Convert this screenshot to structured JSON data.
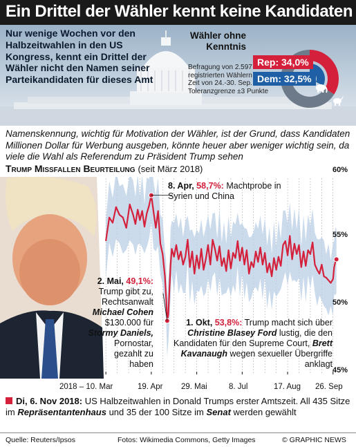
{
  "title": "Ein Drittel der Wähler kennt keine Kandidaten",
  "intro": "Nur wenige Wochen vor den Halbzeitwahlen in den US Kongress, kennt ein Drittel der Wähler nicht den Namen seiner Parteikandidaten für dieses Amt",
  "survey": {
    "title": "Wähler ohne Kenntnis",
    "rep_label": "Rep: 34,0%",
    "dem_label": "Dem: 32,5%",
    "rep_value": 34.0,
    "dem_value": 32.5,
    "note": "Befragung von 2.597 registrierten Wählern in der Zeit von 24.-30. Sep. Toleranzgrenze ±3 Punkte",
    "colors": {
      "rep": "#d4203a",
      "dem": "#1f5fa6",
      "rest": "#6c7a89"
    },
    "icons": [
      "elephant-icon",
      "donkey-icon"
    ]
  },
  "description": "Namenskennung, wichtig für Motivation der Wähler, ist der Grund, dass Kandidaten Millionen Dollar für Werbung ausgeben, könnte heuer aber weniger wichtig sein, da viele die Wahl als Referendum zu Präsident Trump sehen",
  "chart_head": {
    "title": "Trump Missfallen Beurteilung",
    "period": "(seit März 2018)"
  },
  "annotations": {
    "apr8": {
      "date": "8. Apr,",
      "value": "58,7%:",
      "text": "Machtprobe in Syrien und China"
    },
    "mai2": {
      "date": "2. Mai,",
      "value": "49,1%:",
      "t1": "Trump gibt zu,",
      "t2": "Rechtsanwalt",
      "n1": "Michael Cohen",
      "t3": "$130.000 für",
      "n2": "Stormy Daniels,",
      "t4": "Pornostar,",
      "t5": "gezahlt zu",
      "t6": "haben"
    },
    "okt1": {
      "date": "1. Okt,",
      "value": "53,8%:",
      "t1": "Trump macht sich über",
      "n1": "Christine Blasey Ford",
      "t2": "lustig,",
      "t3": "die den Kandidaten für den Supreme Court,",
      "n2": "Brett Kavanaugh",
      "t4": "wegen sexueller Übergriffe anklagt"
    }
  },
  "chart_data": {
    "type": "line",
    "title": "Trump Missfallen Beurteilung",
    "subtitle": "(seit März 2018)",
    "xlabel": "",
    "ylabel": "",
    "x_tick_labels": [
      "2018 – 10. Mar",
      "19. Apr",
      "29. Mai",
      "8. Jul",
      "17. Aug",
      "26. Sep"
    ],
    "x_tick_days": [
      0,
      40,
      80,
      120,
      160,
      200
    ],
    "y_tick_labels": [
      "60%",
      "55%",
      "50%",
      "45%"
    ],
    "y_tick_values": [
      60,
      55,
      50,
      45
    ],
    "ylim": [
      45,
      60
    ],
    "xlim": [
      -8,
      205
    ],
    "grid": "vertical",
    "colors": {
      "line": "#d4203a",
      "band": "#b9cfe6"
    },
    "x_days": [
      0,
      3,
      6,
      9,
      12,
      15,
      18,
      21,
      24,
      26,
      28,
      30,
      32,
      34,
      36,
      38,
      40,
      42,
      44,
      46,
      48,
      50,
      52,
      53,
      54,
      55,
      56,
      57,
      58,
      60,
      62,
      64,
      66,
      68,
      70,
      72,
      74,
      76,
      78,
      80,
      82,
      84,
      86,
      88,
      90,
      92,
      94,
      96,
      98,
      100,
      102,
      104,
      106,
      108,
      110,
      112,
      114,
      116,
      118,
      120,
      122,
      124,
      126,
      128,
      130,
      132,
      134,
      136,
      138,
      140,
      142,
      144,
      146,
      148,
      150,
      152,
      154,
      156,
      158,
      160,
      162,
      164,
      166,
      168,
      170,
      172,
      174,
      176,
      178,
      180,
      182,
      184,
      186,
      188,
      190,
      192,
      194,
      196,
      198,
      200,
      201,
      202,
      203
    ],
    "values": [
      55.2,
      57.0,
      56.6,
      57.8,
      57.2,
      57.0,
      56.2,
      58.0,
      57.2,
      56.5,
      57.6,
      56.8,
      57.5,
      56.3,
      57.3,
      57.9,
      58.7,
      57.4,
      56.2,
      57.5,
      55.0,
      54.2,
      52.5,
      51.0,
      49.1,
      49.6,
      51.6,
      53.4,
      54.6,
      54.0,
      54.9,
      53.8,
      54.4,
      53.4,
      54.0,
      55.3,
      53.2,
      54.4,
      52.7,
      54.1,
      53.1,
      54.6,
      53.0,
      53.8,
      54.9,
      53.4,
      55.3,
      54.6,
      53.7,
      54.8,
      53.3,
      53.9,
      52.9,
      54.5,
      53.1,
      54.3,
      53.9,
      55.2,
      53.7,
      54.7,
      53.4,
      54.5,
      52.7,
      53.6,
      53.2,
      54.4,
      53.6,
      54.7,
      53.4,
      54.3,
      52.8,
      53.5,
      52.5,
      53.9,
      53.0,
      54.0,
      53.3,
      54.9,
      55.2,
      54.1,
      55.6,
      53.8,
      55.0,
      54.2,
      54.9,
      53.2,
      54.4,
      53.3,
      54.5,
      54.2,
      55.1,
      53.4,
      53.0,
      52.7,
      53.4,
      52.5,
      52.4,
      52.2,
      52.0,
      52.3,
      53.2,
      53.6,
      53.8
    ]
  },
  "footer": {
    "date": "Di, 6. Nov 2018:",
    "p1": "US Halbzeitwahlen in Donald Trumps erster Amtszeit. All 435 Sitze im",
    "house": "Repräsentantenhaus",
    "p2": "und 35 der 100 Sitze im",
    "senate": "Senat",
    "p3": "werden gewählt"
  },
  "credits": {
    "source": "Quelle: Reuters/Ipsos",
    "photos": "Fotos: Wikimedia Commons, Getty Images",
    "copyright": "© GRAPHIC NEWS"
  }
}
